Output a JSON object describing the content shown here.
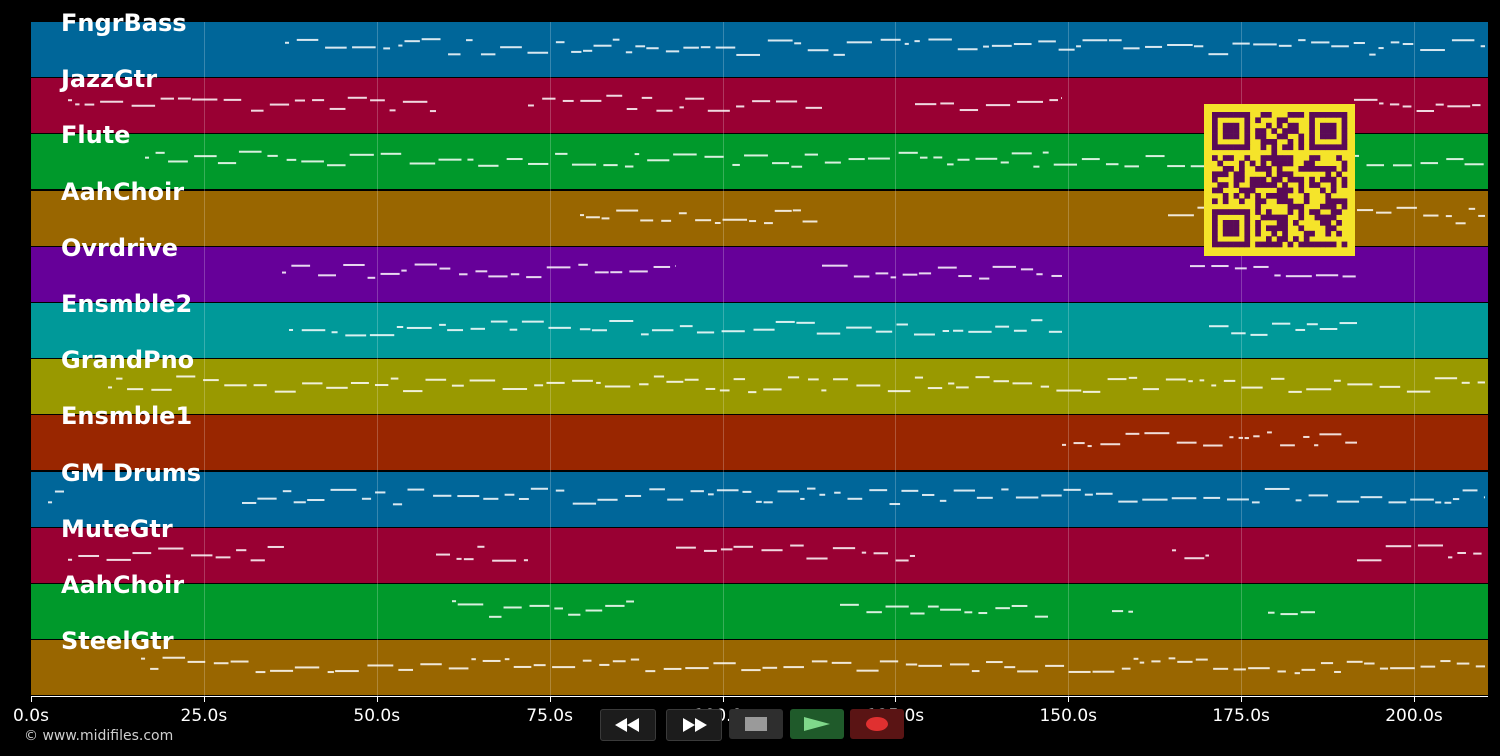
{
  "tracks": [
    {
      "name": "FngrBass",
      "color": "#006699"
    },
    {
      "name": "JazzGtr",
      "color": "#990033"
    },
    {
      "name": "Flute",
      "color": "#00992b"
    },
    {
      "name": "AahChoir",
      "color": "#996600"
    },
    {
      "name": "Ovrdrive",
      "color": "#660099"
    },
    {
      "name": "Ensmble2",
      "color": "#009999"
    },
    {
      "name": "GrandPno",
      "color": "#999900"
    },
    {
      "name": "Ensmble1",
      "color": "#992600"
    },
    {
      "name": "GM Drums",
      "color": "#006699"
    },
    {
      "name": "MuteGtr",
      "color": "#990033"
    },
    {
      "name": "AahChoir",
      "color": "#00992b"
    },
    {
      "name": "SteelGtr",
      "color": "#996600"
    }
  ],
  "timeline": {
    "tick_labels": [
      "0.0s",
      "25.0s",
      "50.0s",
      "75.0s",
      "100.0s",
      "125.0s",
      "150.0s",
      "175.0s",
      "200.0s"
    ]
  },
  "transport": {
    "rewind_icon": "rewind-icon",
    "forward_icon": "fast-forward-icon",
    "stop_icon": "stop-icon",
    "play_icon": "play-icon",
    "record_icon": "record-icon"
  },
  "footer": {
    "copyright": "© www.midifiles.com"
  },
  "colors": {
    "background": "#000000",
    "qr_fg": "#5a0a57",
    "qr_bg": "#f5e42a"
  }
}
